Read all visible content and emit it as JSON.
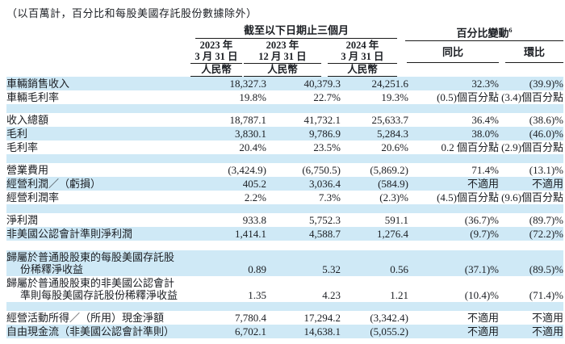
{
  "note": "（以百萬計，百分比和每股美國存託股份數據除外）",
  "colors": {
    "highlight_row": "#cfe9f6",
    "rule": "#1a1a1a",
    "text": "#1b1e23"
  },
  "header": {
    "period_group": "截至以下日期止三個月",
    "change_group": "百分比變動",
    "change_group_superscript": "6",
    "period_columns": [
      {
        "year": "2023 年",
        "date": "3 月 31 日",
        "currency": "人民幣"
      },
      {
        "year": "2023 年",
        "date": "12 月 31 日",
        "currency": "人民幣"
      },
      {
        "year": "2024 年",
        "date": "3 月 31 日",
        "currency": "人民幣"
      }
    ],
    "change_columns": [
      "同比",
      "環比"
    ]
  },
  "rows": [
    {
      "type": "data",
      "highlight": true,
      "label": "車輛銷售收入",
      "values": [
        "18,327.3",
        "40,379.3",
        "24,251.6",
        "32.3%",
        "(39.9)%"
      ]
    },
    {
      "type": "data",
      "highlight": false,
      "label": "車輛毛利率",
      "values": [
        "19.8%",
        "22.7%",
        "19.3%",
        "(0.5)個百分點",
        "(3.4)個百分點"
      ]
    },
    {
      "type": "spacer",
      "highlight": true
    },
    {
      "type": "data",
      "highlight": false,
      "label": "收入總額",
      "values": [
        "18,787.1",
        "41,732.1",
        "25,633.7",
        "36.4%",
        "(38.6)%"
      ]
    },
    {
      "type": "data",
      "highlight": true,
      "label": "毛利",
      "values": [
        "3,830.1",
        "9,786.9",
        "5,284.3",
        "38.0%",
        "(46.0)%"
      ]
    },
    {
      "type": "data",
      "highlight": false,
      "label": "毛利率",
      "values": [
        "20.4%",
        "23.5%",
        "20.6%",
        "0.2 個百分點",
        "(2.9)個百分點"
      ]
    },
    {
      "type": "spacer",
      "highlight": true
    },
    {
      "type": "data",
      "highlight": false,
      "label": "營業費用",
      "values": [
        "(3,424.9)",
        "(6,750.5)",
        "(5,869.2)",
        "71.4%",
        "(13.1)%"
      ]
    },
    {
      "type": "data",
      "highlight": true,
      "label": "經營利潤／（虧損）",
      "values": [
        "405.2",
        "3,036.4",
        "(584.9)",
        "不適用",
        "不適用"
      ]
    },
    {
      "type": "data",
      "highlight": false,
      "label": "經營利潤率",
      "values": [
        "2.2%",
        "7.3%",
        "(2.3)%",
        "(4.5)個百分點",
        "(9.6)個百分點"
      ]
    },
    {
      "type": "spacer",
      "highlight": true
    },
    {
      "type": "data",
      "highlight": false,
      "label": "淨利潤",
      "values": [
        "933.8",
        "5,752.3",
        "591.1",
        "(36.7)%",
        "(89.7)%"
      ]
    },
    {
      "type": "data",
      "highlight": true,
      "label": "非美國公認會計準則淨利潤",
      "values": [
        "1,414.1",
        "4,588.7",
        "1,276.4",
        "(9.7)%",
        "(72.2)%"
      ]
    },
    {
      "type": "spacer",
      "highlight": false,
      "tall": true
    },
    {
      "type": "data",
      "highlight": true,
      "label": "歸屬於普通股股東的每股美國存託股份稀釋淨收益",
      "values": [
        "0.89",
        "5.32",
        "0.56",
        "(37.1)%",
        "(89.5)%"
      ]
    },
    {
      "type": "data",
      "highlight": false,
      "label": "歸屬於普通股股東的非美國公認會計準則每股美國存託股份稀釋淨收益",
      "values": [
        "1.35",
        "4.23",
        "1.21",
        "(10.4)%",
        "(71.4)%"
      ]
    },
    {
      "type": "spacer",
      "highlight": true
    },
    {
      "type": "data",
      "highlight": false,
      "label": "經營活動所得／（所用）現金淨額",
      "values": [
        "7,780.4",
        "17,294.2",
        "(3,342.4)",
        "不適用",
        "不適用"
      ]
    },
    {
      "type": "data",
      "highlight": true,
      "label": "自由現金流（非美國公認會計準則）",
      "values": [
        "6,702.1",
        "14,638.1",
        "(5,055.2)",
        "不適用",
        "不適用"
      ]
    }
  ]
}
